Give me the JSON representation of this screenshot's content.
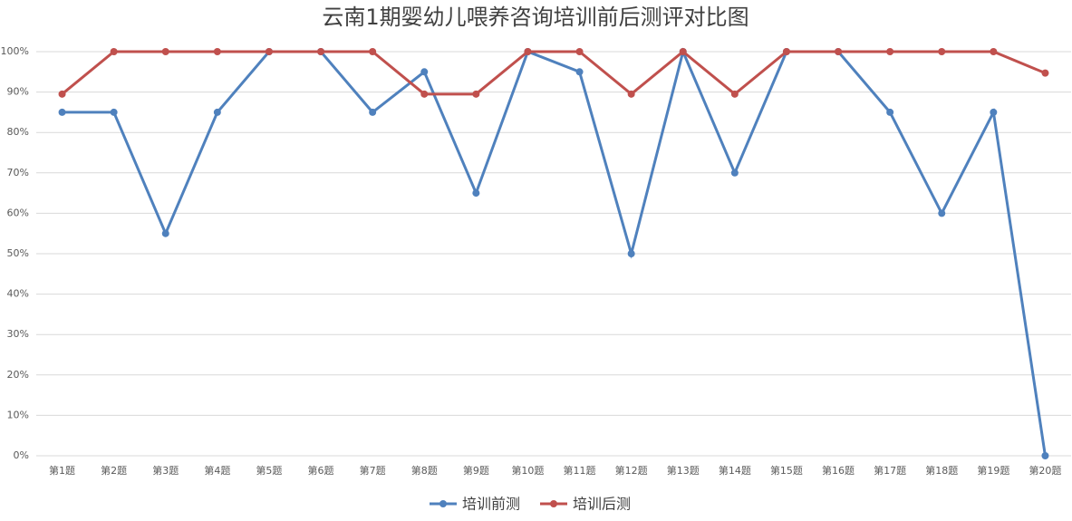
{
  "chart_data": {
    "type": "line",
    "title": "云南1期婴幼儿喂养咨询培训前后测评对比图",
    "categories": [
      "第1题",
      "第2题",
      "第3题",
      "第4题",
      "第5题",
      "第6题",
      "第7题",
      "第8题",
      "第9题",
      "第10题",
      "第11题",
      "第12题",
      "第13题",
      "第14题",
      "第15题",
      "第16题",
      "第17题",
      "第18题",
      "第19题",
      "第20题"
    ],
    "series": [
      {
        "name": "培训前测",
        "color": "#4f81bd",
        "values": [
          85,
          85,
          55,
          85,
          100,
          100,
          85,
          95,
          65,
          100,
          95,
          50,
          100,
          70,
          100,
          100,
          85,
          60,
          85,
          0
        ]
      },
      {
        "name": "培训后测",
        "color": "#c0504d",
        "values": [
          89.5,
          100,
          100,
          100,
          100,
          100,
          100,
          89.5,
          89.5,
          100,
          100,
          89.5,
          100,
          89.5,
          100,
          100,
          100,
          100,
          100,
          94.7
        ]
      }
    ],
    "ylim": [
      0,
      100
    ],
    "yticks": [
      {
        "value": 0,
        "label": "0%"
      },
      {
        "value": 10,
        "label": "10%"
      },
      {
        "value": 20,
        "label": "20%"
      },
      {
        "value": 30,
        "label": "30%"
      },
      {
        "value": 40,
        "label": "40%"
      },
      {
        "value": 50,
        "label": "50%"
      },
      {
        "value": 60,
        "label": "60%"
      },
      {
        "value": 70,
        "label": "70%"
      },
      {
        "value": 80,
        "label": "80%"
      },
      {
        "value": 90,
        "label": "90%"
      },
      {
        "value": 100,
        "label": "100%"
      }
    ],
    "grid": true,
    "legend": "bottom"
  }
}
